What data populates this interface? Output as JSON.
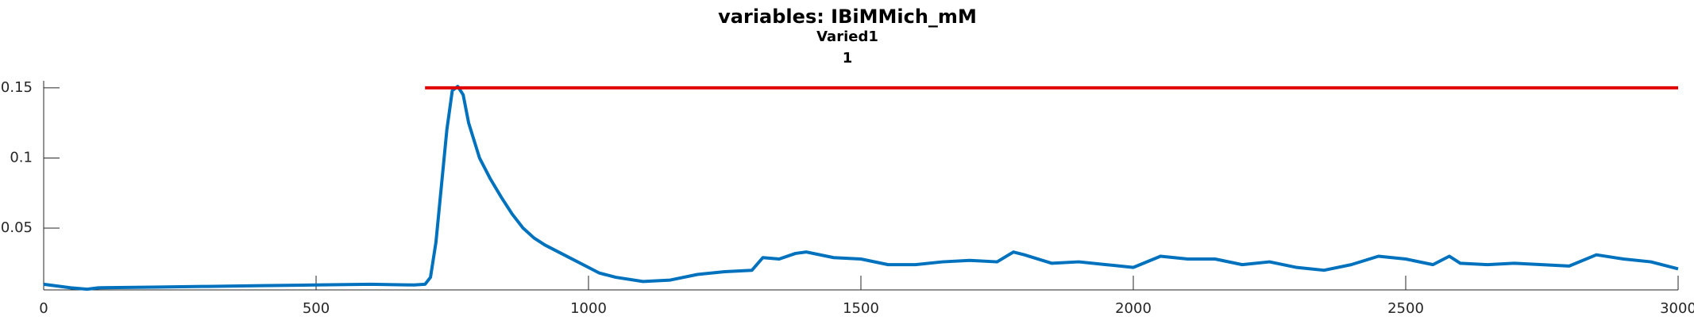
{
  "chart_data": {
    "type": "line",
    "title": "variables: IBiMMich_mM",
    "subtitles": [
      "Varied1",
      "1"
    ],
    "xlim": [
      0,
      3000
    ],
    "xticks": [
      0,
      500,
      1000,
      1500,
      2000,
      2500,
      3000
    ],
    "ylim": [
      0.006,
      0.155
    ],
    "yticks": [
      0.05,
      0.1,
      0.15
    ],
    "series": [
      {
        "color": "#0072bd",
        "x": [
          0,
          50,
          80,
          100,
          200,
          300,
          400,
          500,
          600,
          680,
          700,
          710,
          720,
          730,
          740,
          750,
          760,
          770,
          780,
          800,
          820,
          840,
          860,
          880,
          900,
          920,
          950,
          1000,
          1020,
          1050,
          1100,
          1150,
          1200,
          1250,
          1300,
          1320,
          1350,
          1380,
          1400,
          1450,
          1500,
          1550,
          1600,
          1650,
          1700,
          1750,
          1780,
          1800,
          1850,
          1900,
          1950,
          2000,
          2050,
          2100,
          2150,
          2200,
          2250,
          2300,
          2350,
          2400,
          2450,
          2500,
          2550,
          2580,
          2600,
          2650,
          2700,
          2750,
          2800,
          2850,
          2900,
          2950,
          3000
        ],
        "values": [
          0.01,
          0.0075,
          0.0065,
          0.0075,
          0.008,
          0.0085,
          0.009,
          0.0095,
          0.01,
          0.0095,
          0.01,
          0.015,
          0.04,
          0.08,
          0.12,
          0.148,
          0.151,
          0.145,
          0.125,
          0.1,
          0.085,
          0.072,
          0.06,
          0.05,
          0.043,
          0.038,
          0.032,
          0.022,
          0.018,
          0.015,
          0.012,
          0.013,
          0.017,
          0.019,
          0.02,
          0.029,
          0.028,
          0.032,
          0.033,
          0.029,
          0.028,
          0.024,
          0.024,
          0.026,
          0.027,
          0.026,
          0.033,
          0.031,
          0.025,
          0.026,
          0.024,
          0.022,
          0.03,
          0.028,
          0.028,
          0.024,
          0.026,
          0.022,
          0.02,
          0.024,
          0.03,
          0.028,
          0.024,
          0.03,
          0.025,
          0.024,
          0.025,
          0.024,
          0.023,
          0.031,
          0.028,
          0.026,
          0.021
        ]
      },
      {
        "color": "#e00000",
        "x": [
          700,
          3000
        ],
        "values": [
          0.15,
          0.15
        ]
      }
    ]
  }
}
